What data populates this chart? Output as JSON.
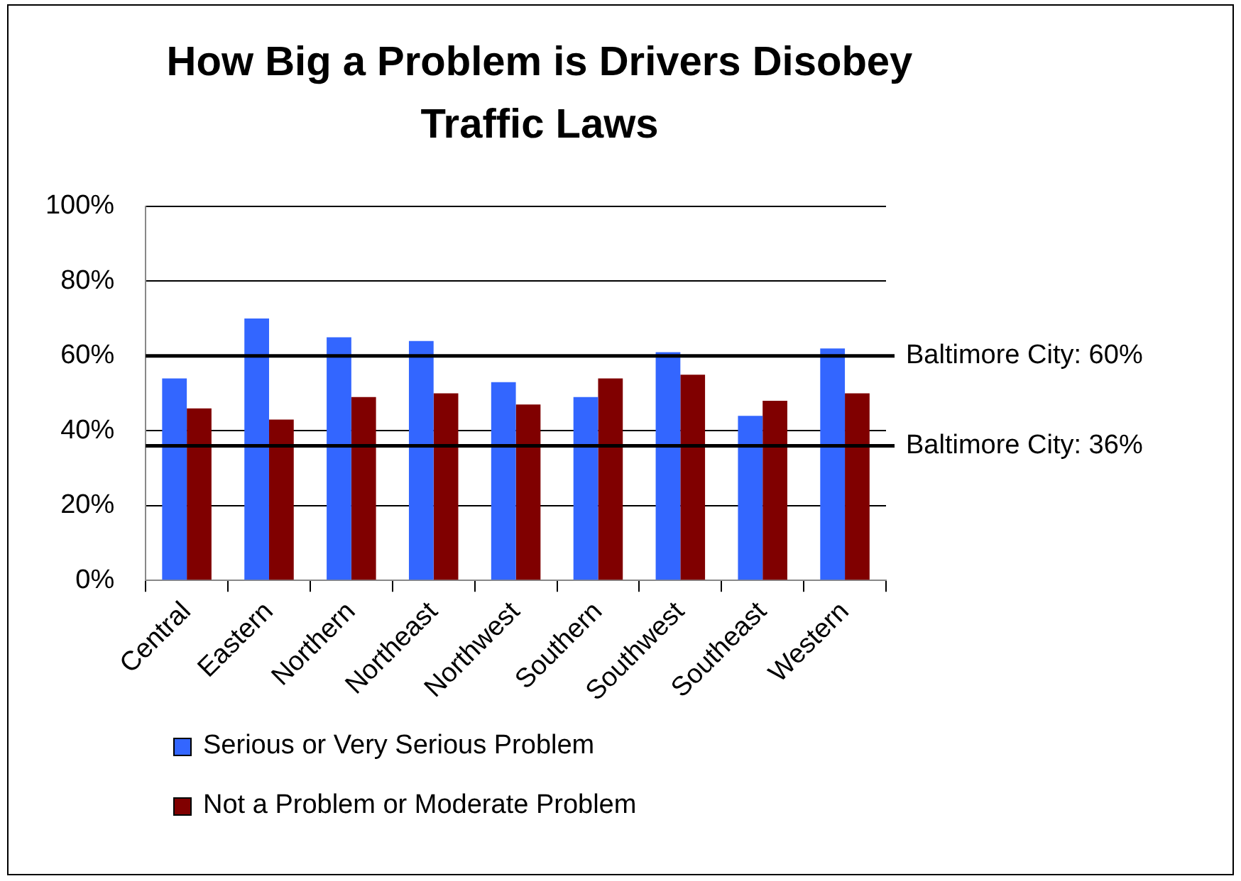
{
  "chart_data": {
    "type": "bar",
    "title": "How Big a Problem is Drivers Disobey Traffic Laws",
    "categories": [
      "Central",
      "Eastern",
      "Northern",
      "Northeast",
      "Northwest",
      "Southern",
      "Southwest",
      "Southeast",
      "Western"
    ],
    "series": [
      {
        "name": "Serious or Very Serious Problem",
        "color": "#3366ff",
        "values": [
          54,
          70,
          65,
          64,
          53,
          49,
          61,
          44,
          62
        ]
      },
      {
        "name": "Not a Problem or Moderate Problem",
        "color": "#800000",
        "values": [
          46,
          43,
          49,
          50,
          47,
          54,
          55,
          48,
          50
        ]
      }
    ],
    "ylim": [
      0,
      100
    ],
    "yticks": [
      {
        "value": 0,
        "label": "0%"
      },
      {
        "value": 20,
        "label": "20%"
      },
      {
        "value": 40,
        "label": "40%"
      },
      {
        "value": 60,
        "label": "60%"
      },
      {
        "value": 80,
        "label": "80%"
      },
      {
        "value": 100,
        "label": "100%"
      }
    ],
    "ref_lines": [
      {
        "axis": "y",
        "value": 60,
        "label": "Baltimore City: 60%",
        "color": "#000000"
      },
      {
        "axis": "y",
        "value": 36,
        "label": "Baltimore City: 36%",
        "color": "#000000"
      }
    ],
    "grid": "y",
    "legend": "bottom left"
  }
}
